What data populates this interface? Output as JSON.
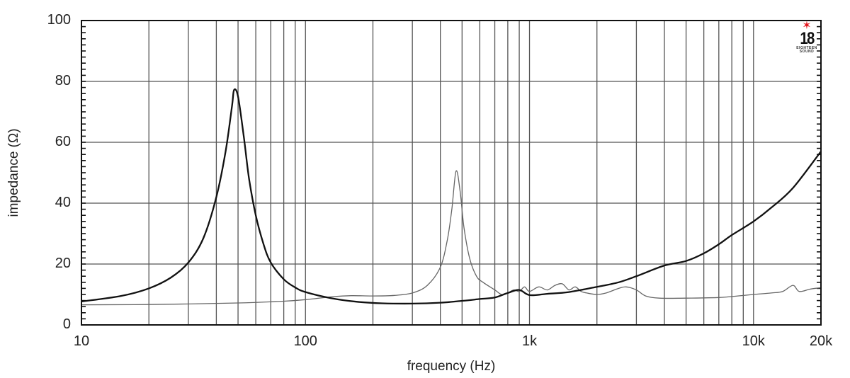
{
  "chart_data": {
    "type": "line",
    "title": "",
    "xlabel": "frequency (Hz)",
    "ylabel": "impedance (Ω)",
    "xscale": "log",
    "xlim": [
      10,
      20000
    ],
    "ylim": [
      0,
      100
    ],
    "grid": true,
    "legend": null,
    "x_tick_labels": [
      "10",
      "100",
      "1k",
      "10k",
      "20k"
    ],
    "y_tick_labels": [
      "0",
      "20",
      "40",
      "60",
      "80",
      "100"
    ],
    "series": [
      {
        "name": "thick curve (woofer impedance)",
        "style": "thick",
        "points": [
          [
            10,
            7.7
          ],
          [
            15,
            9.5
          ],
          [
            20,
            12.0
          ],
          [
            25,
            15.5
          ],
          [
            30,
            20.5
          ],
          [
            35,
            28.5
          ],
          [
            40,
            42.0
          ],
          [
            44,
            57.0
          ],
          [
            47,
            72.0
          ],
          [
            48,
            77.2
          ],
          [
            50,
            75.0
          ],
          [
            53,
            62.0
          ],
          [
            56,
            48.0
          ],
          [
            60,
            36.0
          ],
          [
            65,
            26.5
          ],
          [
            70,
            20.5
          ],
          [
            80,
            15.0
          ],
          [
            90,
            12.3
          ],
          [
            100,
            10.8
          ],
          [
            130,
            8.8
          ],
          [
            170,
            7.6
          ],
          [
            220,
            7.1
          ],
          [
            300,
            7.0
          ],
          [
            400,
            7.3
          ],
          [
            500,
            7.9
          ],
          [
            600,
            8.5
          ],
          [
            700,
            9.0
          ],
          [
            800,
            10.5
          ],
          [
            900,
            11.5
          ],
          [
            1000,
            9.8
          ],
          [
            1200,
            10.2
          ],
          [
            1500,
            10.8
          ],
          [
            2000,
            12.5
          ],
          [
            2500,
            14.0
          ],
          [
            3000,
            16.0
          ],
          [
            4000,
            19.5
          ],
          [
            5000,
            21.0
          ],
          [
            6000,
            23.5
          ],
          [
            7000,
            26.5
          ],
          [
            8000,
            29.5
          ],
          [
            10000,
            34.0
          ],
          [
            12000,
            38.5
          ],
          [
            15000,
            45.0
          ],
          [
            20000,
            57.0
          ]
        ]
      },
      {
        "name": "thin curve",
        "style": "thin",
        "points": [
          [
            10,
            6.6
          ],
          [
            20,
            6.7
          ],
          [
            50,
            7.2
          ],
          [
            80,
            7.8
          ],
          [
            100,
            8.3
          ],
          [
            130,
            9.2
          ],
          [
            160,
            9.6
          ],
          [
            200,
            9.5
          ],
          [
            250,
            9.7
          ],
          [
            300,
            10.5
          ],
          [
            350,
            13.0
          ],
          [
            400,
            19.0
          ],
          [
            430,
            28.0
          ],
          [
            450,
            38.0
          ],
          [
            470,
            50.5
          ],
          [
            490,
            44.0
          ],
          [
            510,
            32.0
          ],
          [
            540,
            22.0
          ],
          [
            580,
            16.0
          ],
          [
            620,
            14.0
          ],
          [
            700,
            11.5
          ],
          [
            750,
            10.0
          ],
          [
            800,
            10.5
          ],
          [
            850,
            11.5
          ],
          [
            900,
            11.0
          ],
          [
            950,
            12.5
          ],
          [
            1000,
            11.0
          ],
          [
            1100,
            12.5
          ],
          [
            1200,
            11.5
          ],
          [
            1300,
            13.0
          ],
          [
            1400,
            13.5
          ],
          [
            1500,
            11.5
          ],
          [
            1600,
            12.5
          ],
          [
            1700,
            11.0
          ],
          [
            1800,
            10.5
          ],
          [
            2000,
            10.0
          ],
          [
            2200,
            10.5
          ],
          [
            2500,
            12.0
          ],
          [
            2700,
            12.5
          ],
          [
            3000,
            11.5
          ],
          [
            3300,
            9.5
          ],
          [
            3800,
            8.8
          ],
          [
            5000,
            8.8
          ],
          [
            7000,
            9.0
          ],
          [
            8500,
            9.5
          ],
          [
            10000,
            10.0
          ],
          [
            12000,
            10.5
          ],
          [
            13500,
            11.0
          ],
          [
            15000,
            13.0
          ],
          [
            16000,
            11.0
          ],
          [
            18000,
            11.8
          ],
          [
            20000,
            12.2
          ]
        ]
      }
    ]
  },
  "axes": {
    "xlabel": "frequency (Hz)",
    "ylabel": "impedance (Ω)",
    "x_ticks": [
      {
        "label": "10",
        "freq": 10
      },
      {
        "label": "100",
        "freq": 100
      },
      {
        "label": "1k",
        "freq": 1000
      },
      {
        "label": "10k",
        "freq": 10000
      },
      {
        "label": "20k",
        "freq": 20000
      }
    ],
    "y_ticks": [
      {
        "label": "100",
        "value": 100
      },
      {
        "label": "80",
        "value": 80
      },
      {
        "label": "60",
        "value": 60
      },
      {
        "label": "40",
        "value": 40
      },
      {
        "label": "20",
        "value": 20
      },
      {
        "label": "0",
        "value": 0
      }
    ]
  },
  "logo": {
    "star": "✶",
    "number": "18",
    "subtext_top": "EIGHTEEN",
    "subtext_bottom": "SOUND",
    "accent_color": "#e4161d"
  },
  "colors": {
    "grid": "#555555",
    "thick_curve": "#111111",
    "thin_curve": "#555555",
    "frame": "#111111"
  }
}
